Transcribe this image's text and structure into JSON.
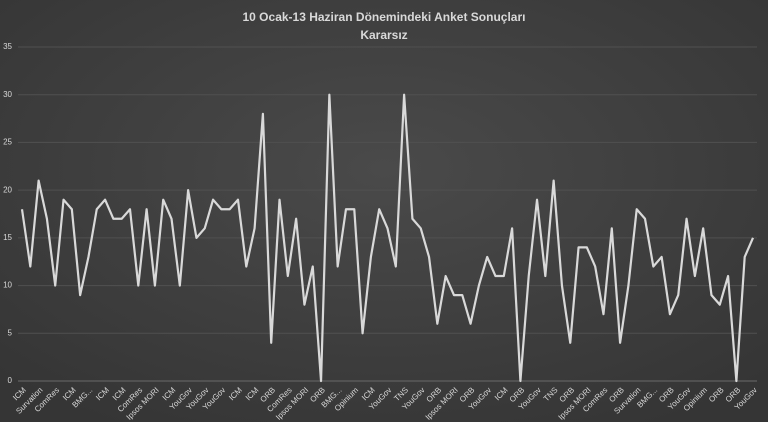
{
  "chart_data": {
    "type": "line",
    "title": "10 Ocak-13 Haziran Dönemindeki Anket Sonuçları",
    "subtitle": "Kararsız",
    "categories": [
      "ICM",
      null,
      "Survation",
      null,
      "ComRes",
      null,
      "ICM",
      null,
      "BMG...",
      null,
      "ICM",
      null,
      "ICM",
      null,
      "ComRes",
      null,
      "Ipsos MORI",
      null,
      "ICM",
      null,
      "YouGov",
      null,
      "YouGov",
      null,
      "YouGov",
      null,
      "ICM",
      null,
      "ICM",
      null,
      "ORB",
      null,
      "ComRes",
      null,
      "Ipsos MORI",
      null,
      "ORB",
      null,
      "BMG...",
      null,
      "Opinium",
      null,
      "ICM",
      null,
      "YouGov",
      null,
      "TNS",
      null,
      "YouGov",
      null,
      "ORB",
      null,
      "Ipsos MORI",
      null,
      "ORB",
      null,
      "YouGov",
      null,
      "ICM",
      null,
      "ORB",
      null,
      "YouGov",
      null,
      "TNS",
      null,
      "ORB",
      null,
      "Ipsos MORI",
      null,
      "ComRes",
      null,
      "ORB",
      null,
      "Survation",
      null,
      "BMG...",
      null,
      "ORB",
      null,
      "YouGov",
      null,
      "Opinium",
      null,
      "ORB",
      null,
      "ORB",
      null,
      "YouGov"
    ],
    "series": [
      {
        "name": "Kararsız",
        "color": "#d9d9d9",
        "values": [
          18,
          12,
          21,
          17,
          10,
          19,
          18,
          9,
          13,
          18,
          19,
          17,
          17,
          18,
          10,
          18,
          10,
          19,
          17,
          10,
          20,
          15,
          16,
          19,
          18,
          18,
          19,
          12,
          16,
          28,
          4,
          19,
          11,
          17,
          8,
          12,
          0,
          30,
          12,
          18,
          18,
          5,
          13,
          18,
          16,
          12,
          30,
          17,
          16,
          13,
          6,
          11,
          9,
          9,
          6,
          10,
          13,
          11,
          11,
          16,
          0,
          11,
          19,
          11,
          21,
          10,
          4,
          14,
          14,
          12,
          7,
          16,
          4,
          10,
          18,
          17,
          12,
          13,
          7,
          9,
          17,
          11,
          16,
          9,
          8,
          11,
          0,
          13,
          15
        ]
      }
    ],
    "ylim": [
      0,
      35
    ],
    "yticks": [
      0,
      5,
      10,
      15,
      20,
      25,
      30,
      35
    ],
    "grid": true
  }
}
